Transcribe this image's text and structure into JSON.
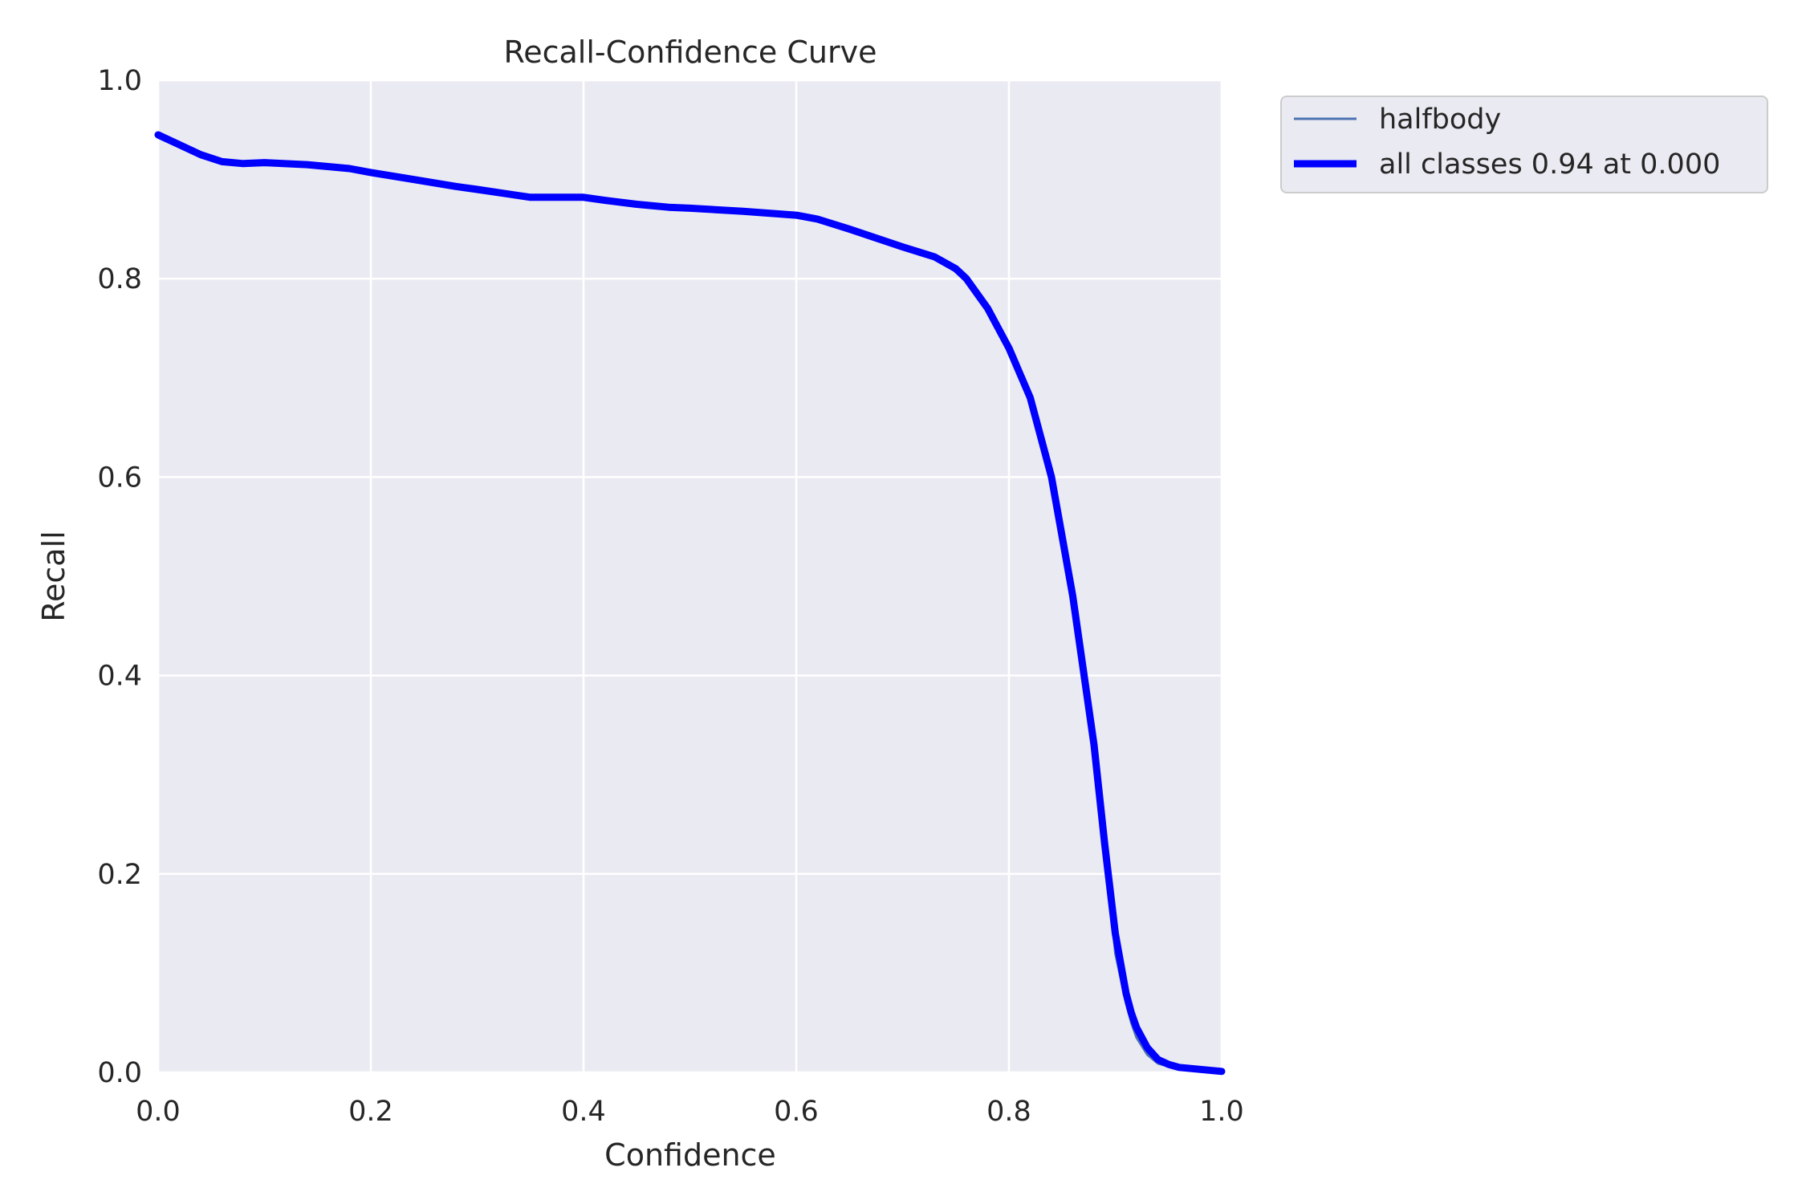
{
  "chart_data": {
    "type": "line",
    "title": "Recall-Confidence Curve",
    "xlabel": "Confidence",
    "ylabel": "Recall",
    "xlim": [
      0.0,
      1.0
    ],
    "ylim": [
      0.0,
      1.0
    ],
    "xticks": [
      "0.0",
      "0.2",
      "0.4",
      "0.6",
      "0.8",
      "1.0"
    ],
    "yticks": [
      "0.0",
      "0.2",
      "0.4",
      "0.6",
      "0.8",
      "1.0"
    ],
    "grid": true,
    "legend_position": "outside top-right",
    "colors": {
      "plot_background": "#eaeaf2",
      "grid": "#ffffff",
      "halfbody": "#4c72b0",
      "all_classes": "#0000ff"
    },
    "series": [
      {
        "name": "halfbody",
        "x": [
          0.0,
          0.02,
          0.04,
          0.06,
          0.08,
          0.1,
          0.14,
          0.18,
          0.2,
          0.24,
          0.28,
          0.3,
          0.35,
          0.4,
          0.42,
          0.45,
          0.48,
          0.5,
          0.55,
          0.6,
          0.62,
          0.65,
          0.7,
          0.73,
          0.75,
          0.76,
          0.78,
          0.8,
          0.82,
          0.84,
          0.86,
          0.88,
          0.89,
          0.9,
          0.91,
          0.915,
          0.92,
          0.93,
          0.94,
          0.95,
          0.96,
          0.98,
          1.0
        ],
        "y": [
          0.945,
          0.935,
          0.925,
          0.918,
          0.915,
          0.917,
          0.915,
          0.91,
          0.907,
          0.9,
          0.893,
          0.89,
          0.882,
          0.881,
          0.879,
          0.876,
          0.872,
          0.871,
          0.868,
          0.864,
          0.859,
          0.85,
          0.832,
          0.82,
          0.812,
          0.798,
          0.766,
          0.73,
          0.68,
          0.6,
          0.48,
          0.33,
          0.23,
          0.12,
          0.07,
          0.05,
          0.035,
          0.018,
          0.009,
          0.006,
          0.004,
          0.002,
          0.0
        ]
      },
      {
        "name": "all classes 0.94 at 0.000",
        "x": [
          0.0,
          0.02,
          0.04,
          0.06,
          0.08,
          0.1,
          0.14,
          0.18,
          0.2,
          0.24,
          0.28,
          0.3,
          0.35,
          0.4,
          0.42,
          0.45,
          0.48,
          0.5,
          0.55,
          0.6,
          0.62,
          0.65,
          0.7,
          0.73,
          0.75,
          0.76,
          0.78,
          0.8,
          0.82,
          0.84,
          0.86,
          0.88,
          0.89,
          0.9,
          0.91,
          0.915,
          0.92,
          0.93,
          0.94,
          0.95,
          0.96,
          0.98,
          1.0
        ],
        "y": [
          0.945,
          0.935,
          0.925,
          0.918,
          0.916,
          0.917,
          0.915,
          0.911,
          0.907,
          0.9,
          0.893,
          0.89,
          0.882,
          0.882,
          0.879,
          0.875,
          0.872,
          0.871,
          0.868,
          0.864,
          0.86,
          0.85,
          0.832,
          0.822,
          0.81,
          0.8,
          0.77,
          0.73,
          0.68,
          0.6,
          0.48,
          0.33,
          0.23,
          0.14,
          0.08,
          0.06,
          0.045,
          0.025,
          0.013,
          0.008,
          0.005,
          0.003,
          0.001
        ]
      }
    ]
  }
}
